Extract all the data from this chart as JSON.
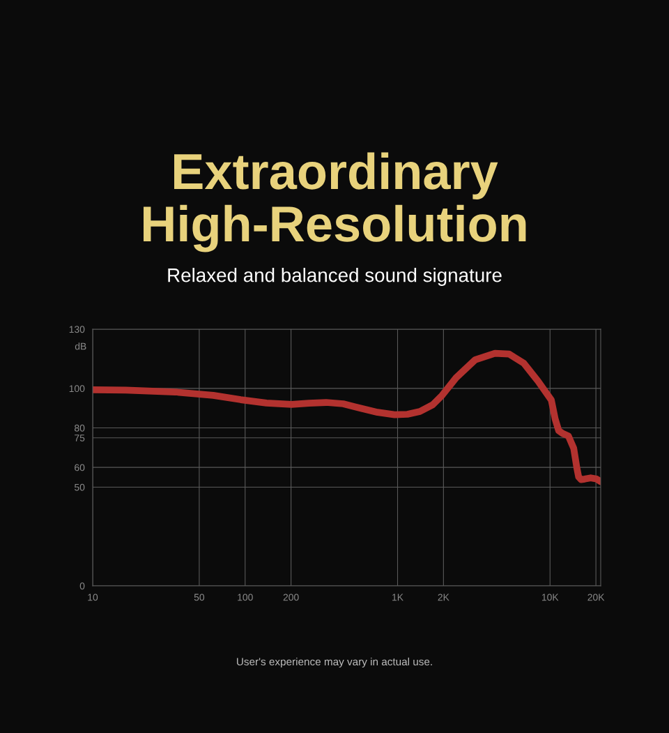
{
  "chart_data": {
    "type": "line",
    "title": "Extraordinary\nHigh-Resolution",
    "subtitle": "Relaxed and balanced sound signature",
    "ylabel": "dB",
    "annotations": [
      "User's experience may vary in actual use."
    ],
    "x": [
      10,
      16.5,
      34.7,
      61.8,
      93.5,
      138,
      202,
      262,
      340,
      440,
      570,
      739,
      957,
      1160,
      1400,
      1700,
      1960,
      2420,
      3230,
      4350,
      5390,
      6740,
      8340,
      10200,
      10800,
      11400,
      12100,
      13200,
      14300,
      15000,
      15400,
      16000,
      16900,
      18500,
      20200,
      21500
    ],
    "series": [
      {
        "color": "#b3322f",
        "values": [
          99.3,
          99.1,
          98.2,
          96.5,
          94.3,
          92.6,
          91.9,
          92.5,
          92.9,
          92.2,
          90.0,
          87.9,
          86.7,
          86.9,
          88.3,
          91.7,
          96.5,
          105.4,
          114.5,
          117.8,
          117.4,
          112.7,
          103.7,
          94.1,
          84.6,
          78.6,
          77.2,
          75.9,
          69.7,
          59.7,
          55.2,
          53.8,
          54.1,
          54.7,
          54.1,
          52.8
        ]
      }
    ],
    "xlim": [
      10,
      21500
    ],
    "ylim": [
      0,
      130
    ],
    "xticks": [
      10,
      50,
      100,
      200,
      {
        "value": 1000,
        "label": "1K"
      },
      {
        "value": 2000,
        "label": "2K"
      },
      {
        "value": 10000,
        "label": "10K"
      },
      {
        "value": 20000,
        "label": "20K"
      }
    ],
    "yticks": [
      0,
      50,
      60,
      75,
      80,
      100,
      130
    ],
    "log": "x",
    "grid": true,
    "marker": "none",
    "line_style": "solid",
    "legend": false
  }
}
